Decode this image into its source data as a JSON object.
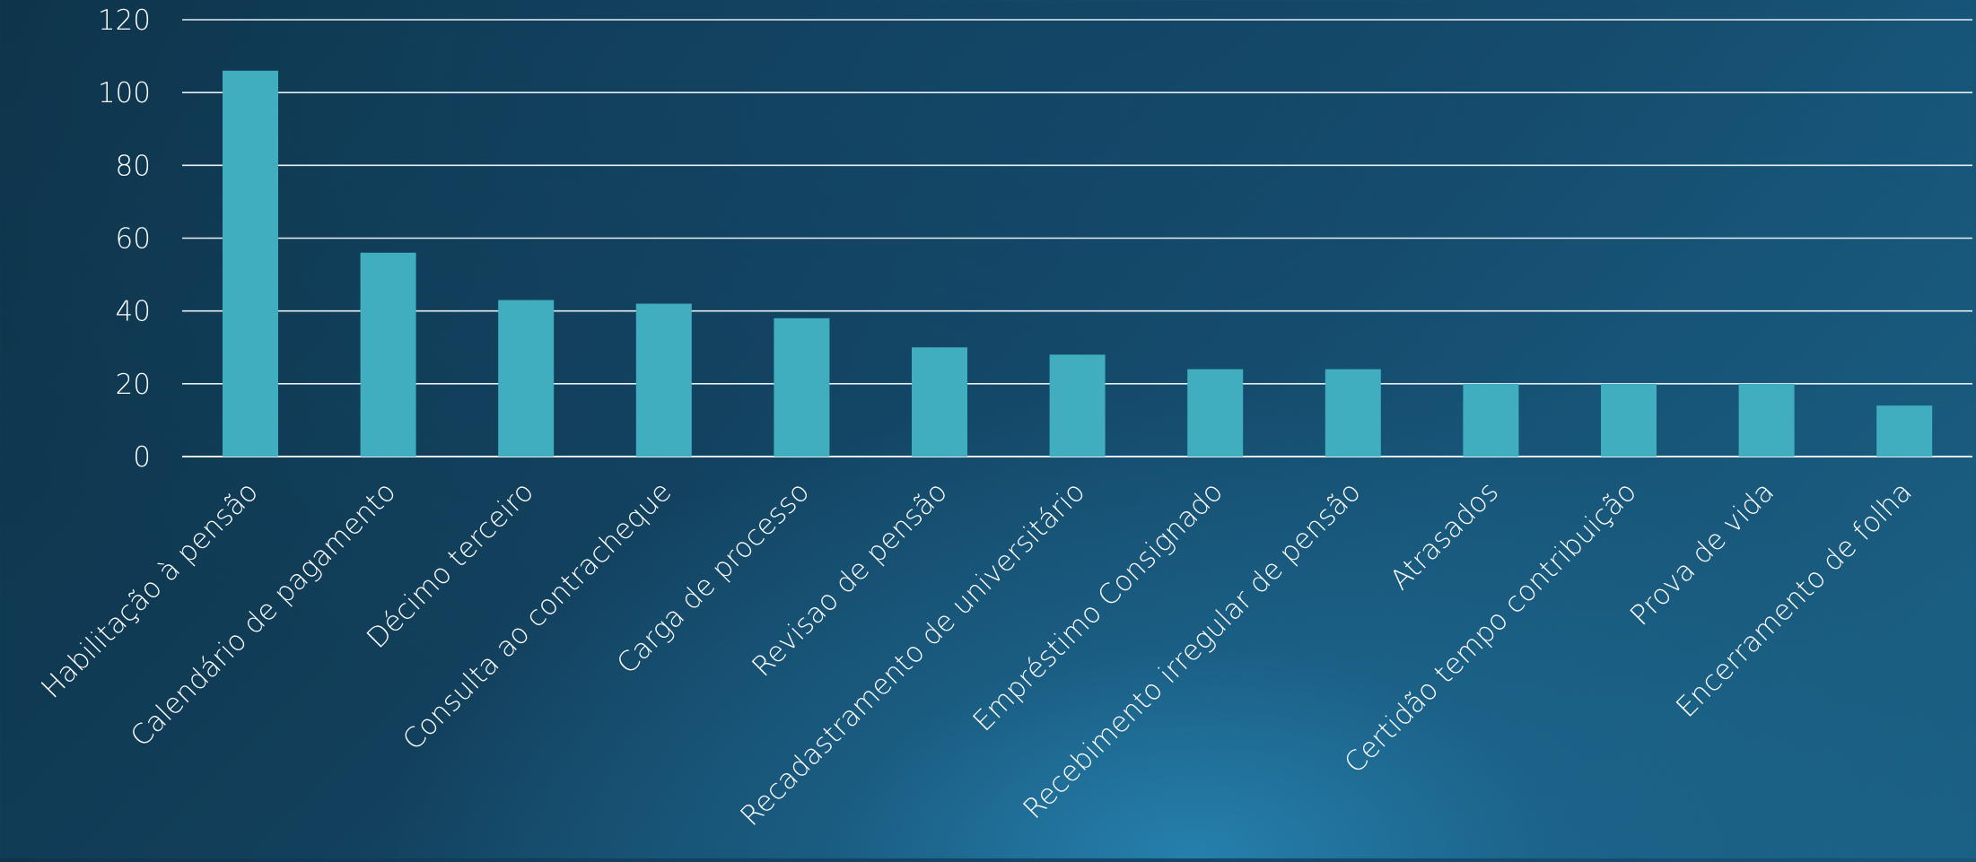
{
  "chart_data": {
    "type": "bar",
    "title": "",
    "xlabel": "",
    "ylabel": "",
    "ylim": [
      0,
      120
    ],
    "yticks": [
      0,
      20,
      40,
      60,
      80,
      100,
      120
    ],
    "grid": true,
    "legend": "none",
    "categories": [
      "Habilitação à pensão",
      "Calendário de pagamento",
      "Décimo terceiro",
      "Consulta ao contracheque",
      "Carga de processo",
      "Revisao de pensão",
      "Recadastramento de universitário",
      "Empréstimo Consignado",
      "Recebimento irregular de pensão",
      "Atrasados",
      "Certidão tempo contribuição",
      "Prova de vida",
      "Encerramento de folha"
    ],
    "values": [
      106,
      56,
      43,
      42,
      38,
      30,
      28,
      24,
      24,
      20,
      20,
      20,
      14
    ],
    "colors": {
      "bar": "#40aebe",
      "gridline": "#e6eef3",
      "text": "#ffffff"
    }
  }
}
